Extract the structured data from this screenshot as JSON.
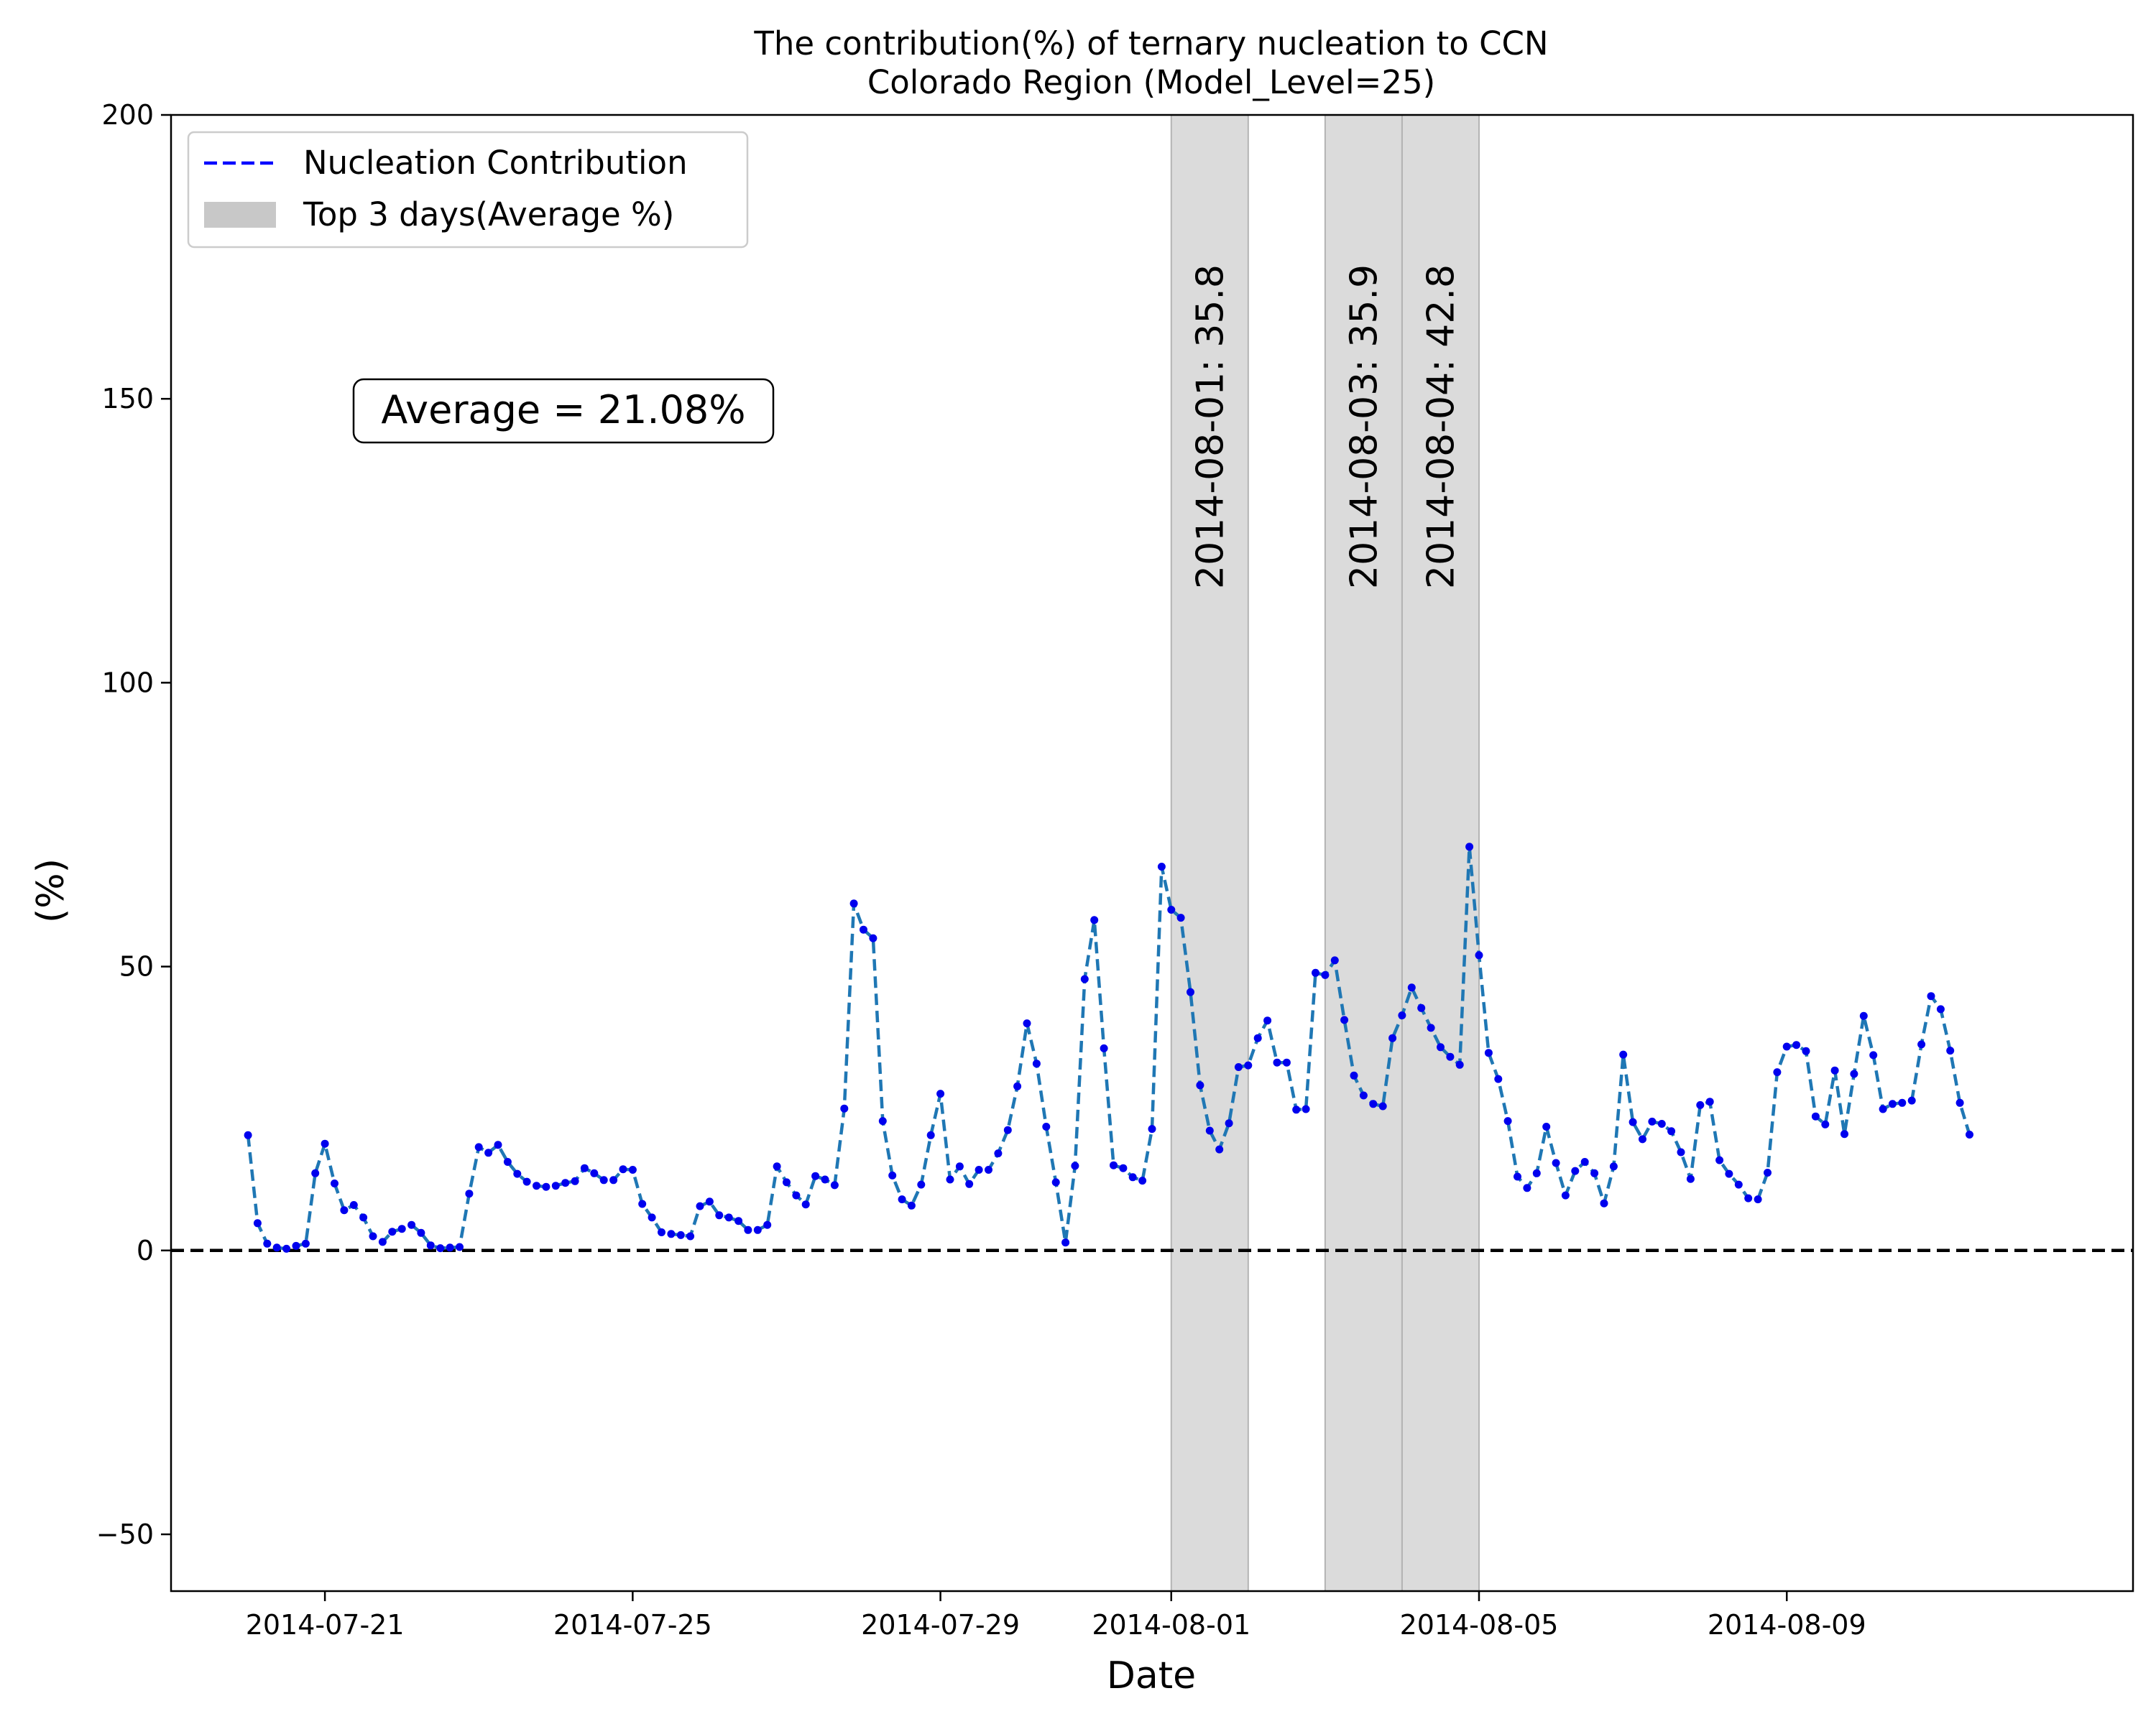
{
  "chart_data": {
    "type": "line",
    "title": "The contribution(%) of ternary nucleation to CCN",
    "subtitle": "Colorado Region (Model_Level=25)",
    "xlabel": "Date",
    "ylabel": "(%)",
    "ylim": [
      -60,
      200
    ],
    "xlim": [
      "2014-07-19T00:00",
      "2014-08-13T12:00"
    ],
    "x_ticks": [
      "2014-07-21",
      "2014-07-25",
      "2014-07-29",
      "2014-08-01",
      "2014-08-05",
      "2014-08-09"
    ],
    "y_ticks": [
      -50,
      0,
      50,
      100,
      150,
      200
    ],
    "y_tick_labels": [
      "−50",
      "0",
      "50",
      "100",
      "150",
      "200"
    ],
    "grid": false,
    "legend_position": "top-left",
    "legend": {
      "line_label": "Nucleation Contribution",
      "band_label": "Top 3 days(Average %)"
    },
    "zero_line": 0,
    "average_annotation": "Average = 21.08%",
    "highlight_days": [
      {
        "start": "2014-08-01",
        "end": "2014-08-02",
        "label": "2014-08-01: 35.8"
      },
      {
        "start": "2014-08-03",
        "end": "2014-08-04",
        "label": "2014-08-03: 35.9"
      },
      {
        "start": "2014-08-04",
        "end": "2014-08-05",
        "label": "2014-08-04: 42.8"
      }
    ],
    "series": [
      {
        "start": "2014-07-20T00:00",
        "step_hours": 3,
        "values": [
          20.3,
          4.8,
          1.2,
          0.5,
          0.3,
          0.8,
          1.2,
          13.6,
          18.8,
          11.8,
          7.1,
          8.0,
          5.8,
          2.5,
          1.5,
          3.3,
          3.8,
          4.5,
          3.1,
          0.9,
          0.4,
          0.5,
          0.6,
          10.0,
          18.2,
          17.2,
          18.6,
          15.6,
          13.5,
          12.1,
          11.4,
          11.2,
          11.4,
          11.9,
          12.2,
          14.5,
          13.6,
          12.4,
          12.4,
          14.3,
          14.2,
          8.2,
          5.8,
          3.2,
          2.9,
          2.7,
          2.5,
          7.8,
          8.6,
          6.2,
          5.8,
          5.2,
          3.6,
          3.6,
          4.5,
          14.8,
          12.0,
          9.7,
          8.1,
          13.1,
          12.5,
          11.5,
          25.0,
          61.1,
          56.5,
          55.0,
          22.8,
          13.2,
          9.0,
          7.9,
          11.6,
          20.3,
          27.6,
          12.5,
          14.8,
          11.7,
          14.2,
          14.2,
          17.1,
          21.2,
          28.9,
          40.0,
          32.9,
          21.8,
          12.0,
          1.4,
          14.9,
          47.8,
          58.2,
          35.6,
          15.0,
          14.5,
          12.9,
          12.3,
          21.4,
          67.6,
          60.0,
          58.6,
          45.5,
          29.1,
          21.1,
          17.8,
          22.4,
          32.3,
          32.6,
          37.4,
          40.5,
          33.1,
          33.1,
          24.8,
          24.9,
          48.9,
          48.5,
          51.1,
          40.6,
          30.8,
          27.3,
          25.8,
          25.4,
          37.4,
          41.4,
          46.3,
          42.7,
          39.2,
          35.8,
          34.1,
          32.7,
          71.1,
          52.0,
          34.8,
          30.2,
          22.8,
          13.0,
          11.0,
          13.6,
          21.8,
          15.4,
          9.7,
          14.0,
          15.6,
          13.6,
          8.3,
          14.8,
          34.5,
          22.6,
          19.6,
          22.7,
          22.3,
          21.0,
          17.3,
          12.6,
          25.6,
          26.2,
          15.9,
          13.5,
          11.6,
          9.2,
          9.0,
          13.7,
          31.4,
          35.9,
          36.2,
          35.1,
          23.6,
          22.2,
          31.7,
          20.5,
          31.1,
          41.3,
          34.4,
          24.9,
          25.8,
          26.0,
          26.4,
          36.3,
          44.8,
          42.5,
          35.2,
          26.0,
          20.4
        ]
      }
    ],
    "colors": {
      "line": "#1f77b4",
      "marker": "#0000ee",
      "legend_line": "#0000ff",
      "band": "#c8c8c8",
      "zero_line": "#000000"
    }
  }
}
